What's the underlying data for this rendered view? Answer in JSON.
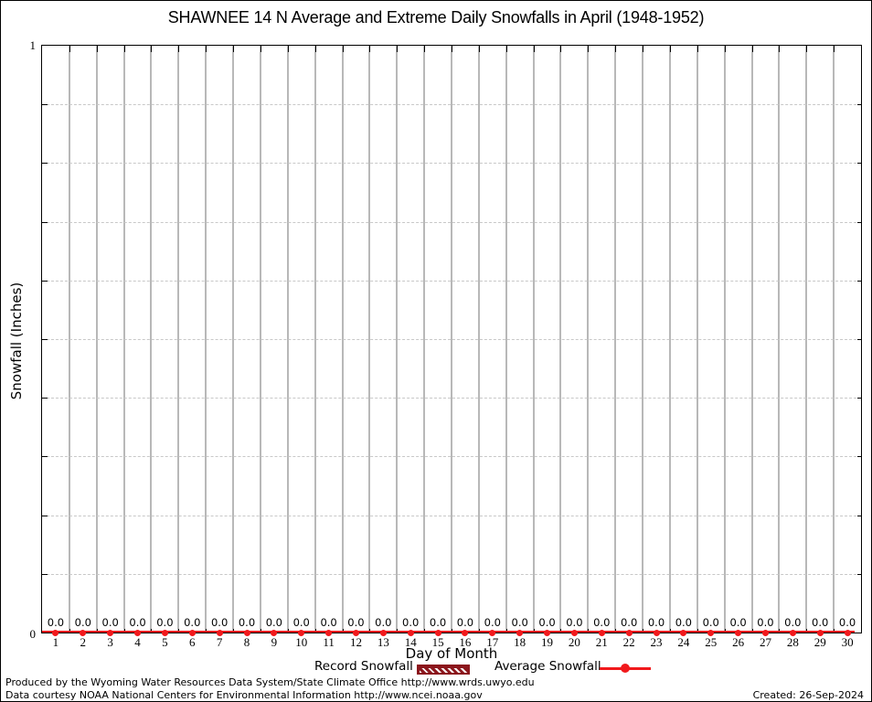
{
  "title": "SHAWNEE 14 N Average and Extreme Daily Snowfalls in April (1948-1952)",
  "y_axis": {
    "label": "Snowfall (Inches)",
    "top_tick_label": "1",
    "bottom_tick_label": "0"
  },
  "x_axis": {
    "label": "Day of Month"
  },
  "legend": {
    "record_label": "Record Snowfall",
    "average_label": "Average Snowfall"
  },
  "footer": {
    "line1": "Produced by the Wyoming Water Resources Data System/State Climate Office http://www.wrds.uwyo.edu",
    "line2": "Data courtesy NOAA National Centers for Environmental Information http://www.ncei.noaa.gov",
    "created": "Created: 26-Sep-2024"
  },
  "colors": {
    "average_series": "#f1191c",
    "record_fill": "#8b161c",
    "grid_vertical": "#b8b8b8",
    "grid_horizontal": "#c8c8c8",
    "axis": "#000000"
  },
  "chart_data": {
    "type": "line",
    "title": "SHAWNEE 14 N Average and Extreme Daily Snowfalls in April (1948-1952)",
    "xlabel": "Day of Month",
    "ylabel": "Snowfall (Inches)",
    "xlim": [
      0.5,
      30.5
    ],
    "ylim": [
      0,
      1
    ],
    "x": [
      1,
      2,
      3,
      4,
      5,
      6,
      7,
      8,
      9,
      10,
      11,
      12,
      13,
      14,
      15,
      16,
      17,
      18,
      19,
      20,
      21,
      22,
      23,
      24,
      25,
      26,
      27,
      28,
      29,
      30
    ],
    "series": [
      {
        "name": "Record Snowfall",
        "style": "hatched-bar",
        "values": [
          0,
          0,
          0,
          0,
          0,
          0,
          0,
          0,
          0,
          0,
          0,
          0,
          0,
          0,
          0,
          0,
          0,
          0,
          0,
          0,
          0,
          0,
          0,
          0,
          0,
          0,
          0,
          0,
          0,
          0
        ]
      },
      {
        "name": "Average Snowfall",
        "style": "line-with-points",
        "values": [
          0,
          0,
          0,
          0,
          0,
          0,
          0,
          0,
          0,
          0,
          0,
          0,
          0,
          0,
          0,
          0,
          0,
          0,
          0,
          0,
          0,
          0,
          0,
          0,
          0,
          0,
          0,
          0,
          0,
          0
        ]
      }
    ],
    "point_labels": [
      "0.0",
      "0.0",
      "0.0",
      "0.0",
      "0.0",
      "0.0",
      "0.0",
      "0.0",
      "0.0",
      "0.0",
      "0.0",
      "0.0",
      "0.0",
      "0.0",
      "0.0",
      "0.0",
      "0.0",
      "0.0",
      "0.0",
      "0.0",
      "0.0",
      "0.0",
      "0.0",
      "0.0",
      "0.0",
      "0.0",
      "0.0",
      "0.0",
      "0.0",
      "0.0"
    ],
    "y_tick_labels": [
      "0",
      "1"
    ],
    "grid": {
      "vertical": "solid gray at day boundaries (n+0.5)",
      "horizontal": "dashed light gray every 0.1"
    },
    "legend_position": "below x-axis label"
  }
}
